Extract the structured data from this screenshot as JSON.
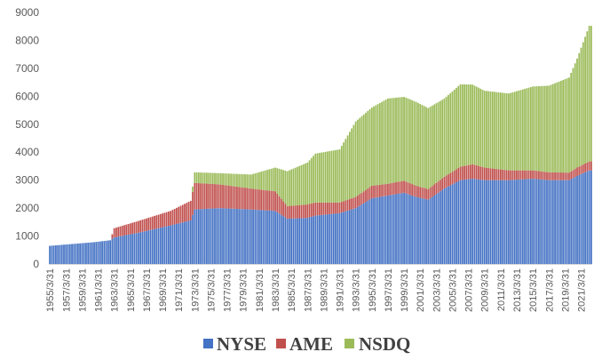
{
  "chart_data": {
    "type": "bar",
    "stacked": true,
    "title": "",
    "xlabel": "",
    "ylabel": "",
    "ylim": [
      0,
      9000
    ],
    "yticks": [
      0,
      1000,
      2000,
      3000,
      4000,
      5000,
      6000,
      7000,
      8000,
      9000
    ],
    "grid": false,
    "legend_position": "bottom",
    "x_tick_labels": [
      "1955/3/31",
      "1957/3/31",
      "1959/3/31",
      "1961/3/31",
      "1963/3/31",
      "1965/3/31",
      "1967/3/31",
      "1969/3/31",
      "1971/3/31",
      "1973/3/31",
      "1975/3/31",
      "1977/3/31",
      "1979/3/31",
      "1981/3/31",
      "1983/3/31",
      "1985/3/31",
      "1987/3/31",
      "1989/3/31",
      "1991/3/31",
      "1993/3/31",
      "1995/3/31",
      "1997/3/31",
      "1999/3/31",
      "2001/3/31",
      "2003/3/31",
      "2005/3/31",
      "2007/3/31",
      "2009/3/31",
      "2011/3/31",
      "2013/3/31",
      "2015/3/31",
      "2017/3/31",
      "2019/3/31",
      "2021/3/31"
    ],
    "x_start": 1955.0,
    "x_step": 0.25,
    "series": [
      {
        "name": "NYSE",
        "color": "#4472C4",
        "points": [
          [
            1955.0,
            650
          ],
          [
            1960.5,
            780
          ],
          [
            1962.5,
            850
          ],
          [
            1963.0,
            950
          ],
          [
            1966.0,
            1120
          ],
          [
            1970.0,
            1380
          ],
          [
            1972.5,
            1560
          ],
          [
            1973.0,
            1950
          ],
          [
            1976.0,
            2000
          ],
          [
            1980.0,
            1950
          ],
          [
            1983.0,
            1900
          ],
          [
            1984.5,
            1620
          ],
          [
            1987.0,
            1650
          ],
          [
            1988.0,
            1730
          ],
          [
            1991.0,
            1820
          ],
          [
            1993.0,
            2000
          ],
          [
            1995.0,
            2350
          ],
          [
            1997.0,
            2450
          ],
          [
            1999.0,
            2550
          ],
          [
            2000.5,
            2400
          ],
          [
            2002.0,
            2300
          ],
          [
            2004.0,
            2700
          ],
          [
            2006.0,
            3000
          ],
          [
            2007.5,
            3050
          ],
          [
            2009.0,
            3000
          ],
          [
            2012.0,
            3000
          ],
          [
            2015.0,
            3050
          ],
          [
            2017.0,
            3000
          ],
          [
            2019.5,
            3000
          ],
          [
            2020.5,
            3150
          ],
          [
            2022.0,
            3350
          ]
        ]
      },
      {
        "name": "AME",
        "color": "#C0504D",
        "points": [
          [
            1955.0,
            0
          ],
          [
            1962.5,
            0
          ],
          [
            1963.0,
            330
          ],
          [
            1966.0,
            420
          ],
          [
            1970.0,
            520
          ],
          [
            1972.5,
            700
          ],
          [
            1973.0,
            950
          ],
          [
            1976.0,
            850
          ],
          [
            1980.0,
            750
          ],
          [
            1983.0,
            700
          ],
          [
            1984.5,
            450
          ],
          [
            1987.0,
            480
          ],
          [
            1988.0,
            470
          ],
          [
            1991.0,
            380
          ],
          [
            1993.0,
            400
          ],
          [
            1995.0,
            450
          ],
          [
            1997.0,
            420
          ],
          [
            1999.0,
            430
          ],
          [
            2000.5,
            400
          ],
          [
            2002.0,
            380
          ],
          [
            2004.0,
            420
          ],
          [
            2006.0,
            480
          ],
          [
            2007.5,
            520
          ],
          [
            2009.0,
            450
          ],
          [
            2012.0,
            350
          ],
          [
            2015.0,
            300
          ],
          [
            2017.0,
            280
          ],
          [
            2019.5,
            270
          ],
          [
            2020.5,
            300
          ],
          [
            2022.0,
            320
          ]
        ]
      },
      {
        "name": "NSDQ",
        "color": "#9BBB59",
        "points": [
          [
            1955.0,
            0
          ],
          [
            1972.5,
            0
          ],
          [
            1973.0,
            380
          ],
          [
            1976.0,
            400
          ],
          [
            1980.0,
            500
          ],
          [
            1983.0,
            850
          ],
          [
            1984.5,
            1250
          ],
          [
            1987.0,
            1500
          ],
          [
            1988.0,
            1750
          ],
          [
            1991.0,
            1900
          ],
          [
            1993.0,
            2700
          ],
          [
            1995.0,
            2800
          ],
          [
            1997.0,
            3050
          ],
          [
            1999.0,
            3000
          ],
          [
            2000.5,
            3000
          ],
          [
            2002.0,
            2900
          ],
          [
            2004.0,
            2800
          ],
          [
            2006.0,
            2950
          ],
          [
            2007.5,
            2850
          ],
          [
            2009.0,
            2750
          ],
          [
            2012.0,
            2750
          ],
          [
            2015.0,
            3000
          ],
          [
            2017.0,
            3100
          ],
          [
            2019.5,
            3400
          ],
          [
            2020.5,
            3900
          ],
          [
            2022.0,
            4850
          ]
        ]
      }
    ]
  }
}
